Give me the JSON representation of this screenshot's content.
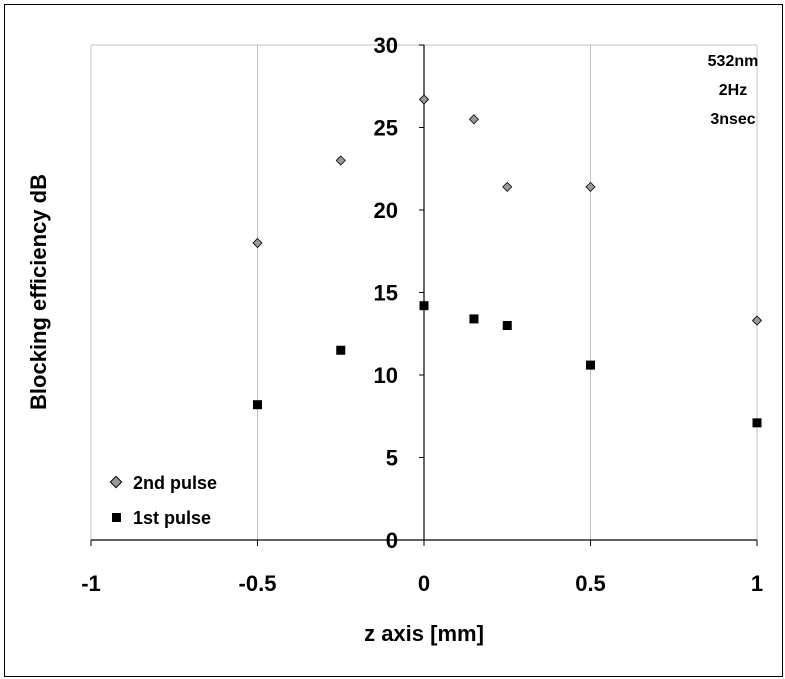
{
  "chart_data": {
    "type": "scatter",
    "title": "",
    "xlabel": "z axis [mm]",
    "ylabel": "Blocking efficiency dB",
    "xlim": [
      -1,
      1
    ],
    "ylim": [
      0,
      30
    ],
    "x_ticks": [
      "-1",
      "-0.5",
      "0",
      "0.5",
      "1"
    ],
    "x_tick_values": [
      -1,
      -0.5,
      0,
      0.5,
      1
    ],
    "y_ticks": [
      "0",
      "5",
      "10",
      "15",
      "20",
      "25",
      "30"
    ],
    "y_tick_values": [
      0,
      5,
      10,
      15,
      20,
      25,
      30
    ],
    "grid": "vertical",
    "legend_position": "bottom-left",
    "annotations": [
      "532nm",
      "2Hz",
      "3nsec"
    ],
    "series": [
      {
        "name": "2nd pulse",
        "marker": "diamond",
        "color": "#999999",
        "x": [
          -0.5,
          -0.25,
          0,
          0.15,
          0.25,
          0.5,
          1
        ],
        "y": [
          18.0,
          23.0,
          26.7,
          25.5,
          21.4,
          21.4,
          13.3
        ]
      },
      {
        "name": "1st pulse",
        "marker": "square",
        "color": "#000000",
        "x": [
          -0.5,
          -0.25,
          0,
          0.15,
          0.25,
          0.5,
          1
        ],
        "y": [
          8.2,
          11.5,
          14.2,
          13.4,
          13.0,
          10.6,
          7.1
        ]
      }
    ]
  }
}
